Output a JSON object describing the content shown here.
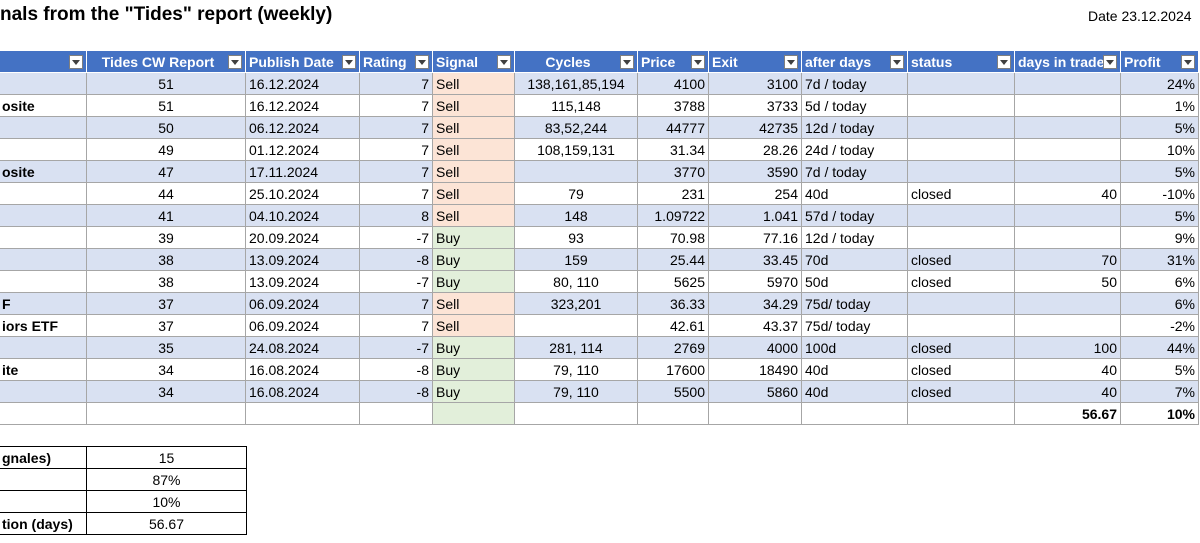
{
  "title": "nals from the \"Tides\" report (weekly)",
  "date_label": "Date 23.12.2024",
  "columns": [
    "",
    "Tides CW Report",
    "Publish Date",
    "Rating",
    "Signal",
    "Cycles",
    "Price",
    "Exit",
    "after days",
    "status",
    "days in trade",
    "Profit"
  ],
  "rows": [
    {
      "name": "",
      "cw": "51",
      "date": "16.12.2024",
      "rating": "7",
      "signal": "Sell",
      "cycles": "138,161,85,194",
      "price": "4100",
      "exit": "3100",
      "after": "7d / today",
      "status": "",
      "days": "",
      "profit": "24%"
    },
    {
      "name": "osite",
      "cw": "51",
      "date": "16.12.2024",
      "rating": "7",
      "signal": "Sell",
      "cycles": "115,148",
      "price": "3788",
      "exit": "3733",
      "after": "5d / today",
      "status": "",
      "days": "",
      "profit": "1%"
    },
    {
      "name": "",
      "cw": "50",
      "date": "06.12.2024",
      "rating": "7",
      "signal": "Sell",
      "cycles": "83,52,244",
      "price": "44777",
      "exit": "42735",
      "after": "12d / today",
      "status": "",
      "days": "",
      "profit": "5%"
    },
    {
      "name": "",
      "cw": "49",
      "date": "01.12.2024",
      "rating": "7",
      "signal": "Sell",
      "cycles": "108,159,131",
      "price": "31.34",
      "exit": "28.26",
      "after": "24d / today",
      "status": "",
      "days": "",
      "profit": "10%"
    },
    {
      "name": "osite",
      "cw": "47",
      "date": "17.11.2024",
      "rating": "7",
      "signal": "Sell",
      "cycles": "",
      "price": "3770",
      "exit": "3590",
      "after": "7d / today",
      "status": "",
      "days": "",
      "profit": "5%"
    },
    {
      "name": "",
      "cw": "44",
      "date": "25.10.2024",
      "rating": "7",
      "signal": "Sell",
      "cycles": "79",
      "price": "231",
      "exit": "254",
      "after": "40d",
      "status": "closed",
      "days": "40",
      "profit": "-10%"
    },
    {
      "name": "",
      "cw": "41",
      "date": "04.10.2024",
      "rating": "8",
      "signal": "Sell",
      "cycles": "148",
      "price": "1.09722",
      "exit": "1.041",
      "after": "57d / today",
      "status": "",
      "days": "",
      "profit": "5%"
    },
    {
      "name": "",
      "cw": "39",
      "date": "20.09.2024",
      "rating": "-7",
      "signal": "Buy",
      "cycles": "93",
      "price": "70.98",
      "exit": "77.16",
      "after": "12d / today",
      "status": "",
      "days": "",
      "profit": "9%"
    },
    {
      "name": "",
      "cw": "38",
      "date": "13.09.2024",
      "rating": "-8",
      "signal": "Buy",
      "cycles": "159",
      "price": "25.44",
      "exit": "33.45",
      "after": "70d",
      "status": "closed",
      "days": "70",
      "profit": "31%"
    },
    {
      "name": "",
      "cw": "38",
      "date": "13.09.2024",
      "rating": "-7",
      "signal": "Buy",
      "cycles": "80, 110",
      "price": "5625",
      "exit": "5970",
      "after": "50d",
      "status": "closed",
      "days": "50",
      "profit": "6%"
    },
    {
      "name": "F",
      "cw": "37",
      "date": "06.09.2024",
      "rating": "7",
      "signal": "Sell",
      "cycles": "323,201",
      "price": "36.33",
      "exit": "34.29",
      "after": "75d/ today",
      "status": "",
      "days": "",
      "profit": "6%"
    },
    {
      "name": "iors ETF",
      "cw": "37",
      "date": "06.09.2024",
      "rating": "7",
      "signal": "Sell",
      "cycles": "",
      "price": "42.61",
      "exit": "43.37",
      "after": "75d/ today",
      "status": "",
      "days": "",
      "profit": "-2%"
    },
    {
      "name": "",
      "cw": "35",
      "date": "24.08.2024",
      "rating": "-7",
      "signal": "Buy",
      "cycles": "281, 114",
      "price": "2769",
      "exit": "4000",
      "after": "100d",
      "status": "closed",
      "days": "100",
      "profit": "44%"
    },
    {
      "name": "ite",
      "cw": "34",
      "date": "16.08.2024",
      "rating": "-8",
      "signal": "Buy",
      "cycles": "79, 110",
      "price": "17600",
      "exit": "18490",
      "after": "40d",
      "status": "closed",
      "days": "40",
      "profit": "5%"
    },
    {
      "name": "",
      "cw": "34",
      "date": "16.08.2024",
      "rating": "-8",
      "signal": "Buy",
      "cycles": "79, 110",
      "price": "5500",
      "exit": "5860",
      "after": "40d",
      "status": "closed",
      "days": "40",
      "profit": "7%"
    }
  ],
  "totals": {
    "days": "56.67",
    "profit": "10%"
  },
  "summary": [
    {
      "label": "gnales)",
      "value": "15"
    },
    {
      "label": "",
      "value": "87%"
    },
    {
      "label": "",
      "value": "10%"
    },
    {
      "label": "tion (days)",
      "value": "56.67"
    }
  ],
  "colors": {
    "header": "#4472c4",
    "band": "#d9e1f2",
    "sell": "#fce4d6",
    "buy": "#e2efda"
  }
}
